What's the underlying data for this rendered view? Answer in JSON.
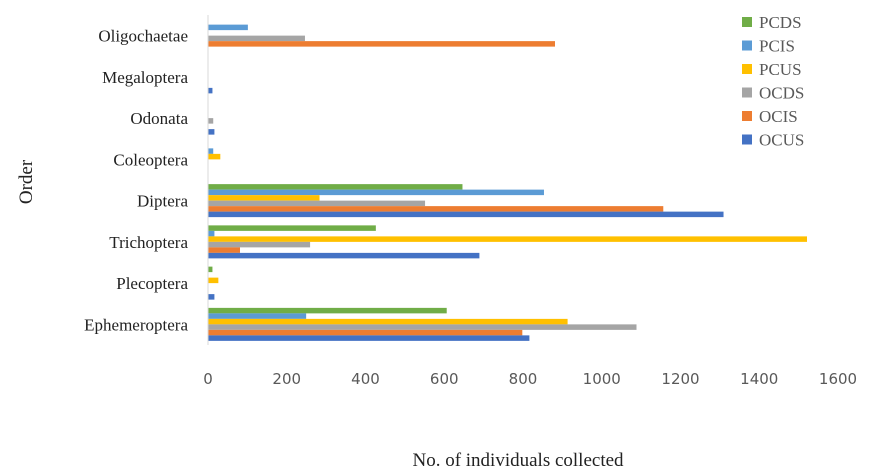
{
  "chart_data": {
    "type": "bar",
    "orientation": "horizontal",
    "title": "",
    "xlabel": "No. of individuals collected",
    "ylabel": "Order",
    "xlim": [
      0,
      1600
    ],
    "xticks": [
      "0",
      "200",
      "400",
      "600",
      "800",
      "1000",
      "1200",
      "1400",
      "1600"
    ],
    "categories": [
      "Oligochaetae",
      "Megaloptera",
      "Odonata",
      "Coleoptera",
      "Diptera",
      "Trichoptera",
      "Plecoptera",
      "Ephemeroptera"
    ],
    "series": [
      {
        "name": "PCDS",
        "color": "#70ad47",
        "values": [
          0,
          0,
          0,
          0,
          645,
          425,
          10,
          605
        ]
      },
      {
        "name": "PCIS",
        "color": "#5b9bd5",
        "values": [
          100,
          0,
          0,
          12,
          852,
          15,
          0,
          248
        ]
      },
      {
        "name": "PCUS",
        "color": "#ffc000",
        "values": [
          0,
          0,
          0,
          30,
          282,
          1520,
          25,
          912
        ]
      },
      {
        "name": "OCDS",
        "color": "#a5a5a5",
        "values": [
          245,
          0,
          12,
          0,
          550,
          258,
          0,
          1087
        ]
      },
      {
        "name": "OCIS",
        "color": "#ed7d31",
        "values": [
          880,
          0,
          0,
          0,
          1155,
          80,
          0,
          797
        ]
      },
      {
        "name": "OCUS",
        "color": "#4472c4",
        "values": [
          0,
          10,
          15,
          0,
          1308,
          688,
          15,
          815
        ]
      }
    ],
    "grid": false,
    "legend_position": "top-right"
  }
}
